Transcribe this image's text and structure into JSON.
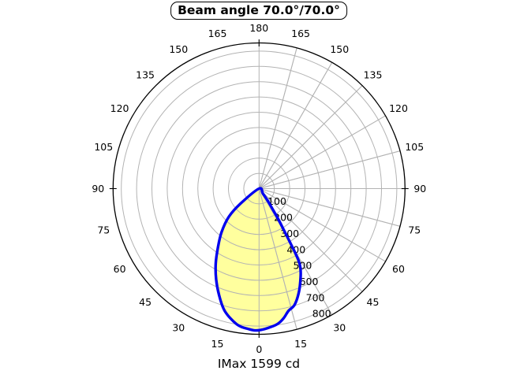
{
  "chart_data": {
    "type": "line",
    "polar": true,
    "title": "Beam angle 70.0°/70.0°",
    "caption": "IMax 1599 cd",
    "beam_angle_plane0_deg": 70.0,
    "beam_angle_plane90_deg": 70.0,
    "imax_cd": 1599,
    "angle_tick_step_deg": 15,
    "angle_labels_both_sides": [
      15,
      30,
      45,
      60,
      75,
      90,
      105,
      120,
      135,
      150,
      165
    ],
    "angle_label_bottom": 0,
    "angle_label_top": 180,
    "radial_tick_labels": [
      100,
      200,
      300,
      400,
      500,
      600,
      700,
      800
    ],
    "radial_grid_values": [
      100,
      200,
      300,
      400,
      500,
      600,
      700,
      800,
      900
    ],
    "radial_boundary_value": 953,
    "grid_on": true,
    "colors": {
      "curve": "#0000ee",
      "fill": "#ffff9e",
      "grid": "#b3b3b3",
      "boundary": "#000000",
      "text": "#000000",
      "background": "#ffffff"
    },
    "intensity_profile_left": [
      [
        57,
        0
      ],
      [
        51,
        154
      ],
      [
        47,
        269
      ],
      [
        40.6,
        377
      ],
      [
        34.7,
        473
      ],
      [
        29.9,
        568
      ],
      [
        25.2,
        658
      ],
      [
        20.5,
        745
      ],
      [
        15.6,
        832
      ],
      [
        9.3,
        900
      ],
      [
        4.5,
        921
      ],
      [
        0,
        927
      ]
    ],
    "intensity_profile_right": [
      [
        0,
        927
      ],
      [
        7,
        899
      ],
      [
        10.5,
        866
      ],
      [
        13.5,
        823
      ],
      [
        17,
        795
      ],
      [
        21.2,
        722
      ],
      [
        25.1,
        640
      ],
      [
        27.5,
        585
      ],
      [
        28.7,
        537
      ],
      [
        29.4,
        472
      ],
      [
        30,
        396
      ],
      [
        30.8,
        319
      ],
      [
        32.1,
        242
      ],
      [
        33.1,
        174
      ],
      [
        35.3,
        104
      ],
      [
        37.6,
        42
      ],
      [
        39,
        0
      ]
    ]
  }
}
